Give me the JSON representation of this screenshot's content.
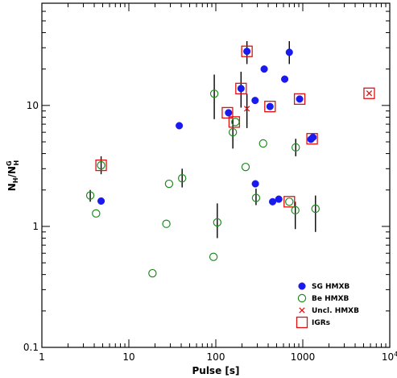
{
  "chart_data": {
    "type": "scatter",
    "xscale": "log",
    "yscale": "log",
    "xlim": [
      1,
      10000
    ],
    "ylim": [
      0.1,
      70
    ],
    "xlabel": "Pulse [s]",
    "ylabel_main": "N",
    "ylabel_sub": "H",
    "ylabel_sep": "/N",
    "ylabel_sup2": "G",
    "ylabel_sub2": "H",
    "x_ticks": [
      {
        "value": 1,
        "label": "1"
      },
      {
        "value": 10,
        "label": "10"
      },
      {
        "value": 100,
        "label": "100"
      },
      {
        "value": 1000,
        "label": "1000"
      },
      {
        "value": 10000,
        "label_base": "10",
        "label_exp": "4"
      }
    ],
    "y_ticks": [
      {
        "value": 0.1,
        "label": "0.1"
      },
      {
        "value": 1,
        "label": "1"
      },
      {
        "value": 10,
        "label": "10"
      }
    ],
    "legend_position": "bottom-right",
    "colors": {
      "sg": "#1a1aee",
      "be": "#1e8a1e",
      "uncl": "#e01010",
      "igr": "#e01010",
      "errorbar": "#000000"
    },
    "legend": [
      {
        "name": "SG HMXB",
        "marker": "filled-circle",
        "color": "#1a1aee"
      },
      {
        "name": "Be HMXB",
        "marker": "open-circle",
        "color": "#1e8a1e"
      },
      {
        "name": "Uncl. HMXB",
        "marker": "cross",
        "color": "#e01010"
      },
      {
        "name": "IGRs",
        "marker": "open-square",
        "color": "#e01010"
      }
    ],
    "series": [
      {
        "name": "SG HMXB",
        "points": [
          {
            "x": 4.8,
            "y": 1.62
          },
          {
            "x": 38,
            "y": 6.8
          },
          {
            "x": 140,
            "y": 8.7
          },
          {
            "x": 195,
            "y": 13.8,
            "err": [
              9.6,
              19
            ]
          },
          {
            "x": 228,
            "y": 28,
            "err": [
              22,
              34
            ]
          },
          {
            "x": 283,
            "y": 11
          },
          {
            "x": 285,
            "y": 2.25
          },
          {
            "x": 360,
            "y": 20
          },
          {
            "x": 420,
            "y": 9.8
          },
          {
            "x": 450,
            "y": 1.6
          },
          {
            "x": 530,
            "y": 1.68
          },
          {
            "x": 620,
            "y": 16.5
          },
          {
            "x": 700,
            "y": 27.5,
            "err": [
              22,
              34
            ]
          },
          {
            "x": 920,
            "y": 11.3
          },
          {
            "x": 1240,
            "y": 5.25
          },
          {
            "x": 1310,
            "y": 5.45
          }
        ]
      },
      {
        "name": "Be HMXB",
        "points": [
          {
            "x": 3.6,
            "y": 1.8,
            "err": [
              1.6,
              2.0
            ]
          },
          {
            "x": 4.2,
            "y": 1.28
          },
          {
            "x": 4.8,
            "y": 3.2,
            "err": [
              2.7,
              3.8
            ]
          },
          {
            "x": 18.7,
            "y": 0.41
          },
          {
            "x": 27,
            "y": 1.05
          },
          {
            "x": 29,
            "y": 2.25
          },
          {
            "x": 41,
            "y": 2.5,
            "err": [
              2.1,
              3.0
            ]
          },
          {
            "x": 94,
            "y": 0.56
          },
          {
            "x": 96,
            "y": 12.5,
            "err": [
              7.7,
              18
            ]
          },
          {
            "x": 104,
            "y": 1.08,
            "err": [
              0.8,
              1.55
            ]
          },
          {
            "x": 157,
            "y": 6.0,
            "err": [
              4.4,
              7.8
            ]
          },
          {
            "x": 168,
            "y": 7.3
          },
          {
            "x": 220,
            "y": 3.1
          },
          {
            "x": 290,
            "y": 1.72,
            "err": [
              1.5,
              2.05
            ]
          },
          {
            "x": 350,
            "y": 4.85
          },
          {
            "x": 700,
            "y": 1.6
          },
          {
            "x": 820,
            "y": 1.36,
            "err": [
              0.95,
              1.6
            ]
          },
          {
            "x": 830,
            "y": 4.5,
            "err": [
              3.8,
              5.3
            ]
          },
          {
            "x": 1400,
            "y": 1.4,
            "err": [
              0.9,
              1.8
            ]
          }
        ]
      },
      {
        "name": "Uncl. HMXB",
        "points": [
          {
            "x": 228,
            "y": 9.4,
            "err": [
              6.5,
              12.5
            ]
          },
          {
            "x": 5800,
            "y": 12.6
          }
        ]
      },
      {
        "name": "IGRs",
        "points": [
          {
            "x": 4.8,
            "y": 3.2
          },
          {
            "x": 136,
            "y": 8.7
          },
          {
            "x": 163,
            "y": 7.3
          },
          {
            "x": 195,
            "y": 13.8
          },
          {
            "x": 228,
            "y": 28
          },
          {
            "x": 420,
            "y": 9.8
          },
          {
            "x": 700,
            "y": 1.6
          },
          {
            "x": 920,
            "y": 11.3
          },
          {
            "x": 1280,
            "y": 5.3
          },
          {
            "x": 5800,
            "y": 12.6
          }
        ]
      }
    ]
  }
}
